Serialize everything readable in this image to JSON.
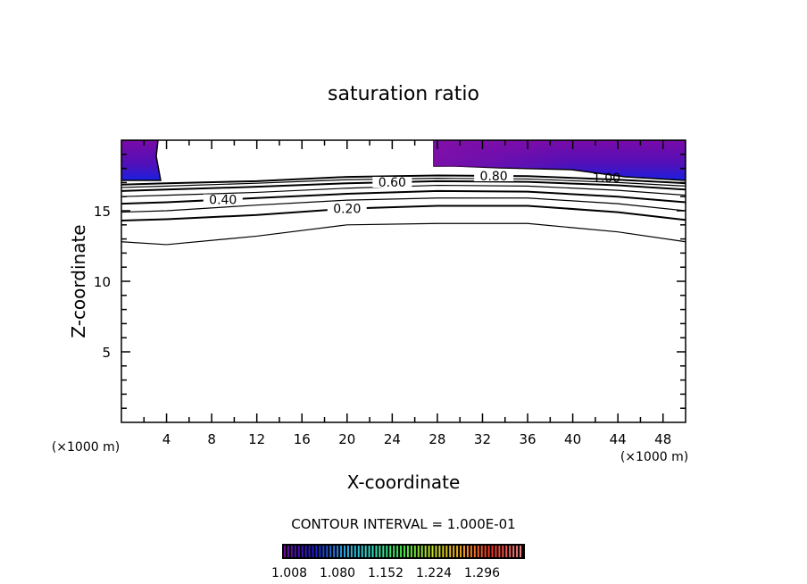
{
  "chart_data": {
    "type": "contour",
    "title": "saturation ratio",
    "xlabel": "X-coordinate",
    "ylabel": "Z-coordinate",
    "x_unit_left": "(×1000 m)",
    "x_unit_right": "(×1000 m)",
    "xlim": [
      0,
      50
    ],
    "ylim": [
      0,
      20
    ],
    "xticks": [
      4,
      8,
      12,
      16,
      20,
      24,
      28,
      32,
      36,
      40,
      44,
      48
    ],
    "yticks": [
      5,
      10,
      15
    ],
    "contour_interval_text": "CONTOUR INTERVAL = 1.000E-01",
    "contour_x": [
      0,
      4,
      12,
      20,
      28,
      36,
      44,
      50
    ],
    "contours": [
      {
        "level": 0.1,
        "label": "",
        "z": [
          12.8,
          12.6,
          13.2,
          14.0,
          14.1,
          14.1,
          13.5,
          12.8
        ]
      },
      {
        "level": 0.2,
        "label": "0.20",
        "z": [
          14.3,
          14.4,
          14.7,
          15.15,
          15.35,
          15.35,
          14.9,
          14.35
        ]
      },
      {
        "level": 0.3,
        "label": "",
        "z": [
          14.9,
          15.0,
          15.4,
          15.75,
          15.9,
          15.9,
          15.5,
          15.0
        ]
      },
      {
        "level": 0.4,
        "label": "0.40",
        "z": [
          15.5,
          15.6,
          15.9,
          16.2,
          16.4,
          16.35,
          16.0,
          15.6
        ]
      },
      {
        "level": 0.5,
        "label": "",
        "z": [
          16.0,
          16.1,
          16.3,
          16.6,
          16.8,
          16.75,
          16.45,
          16.1
        ]
      },
      {
        "level": 0.6,
        "label": "0.60",
        "z": [
          16.4,
          16.5,
          16.7,
          16.95,
          17.1,
          17.05,
          16.8,
          16.5
        ]
      },
      {
        "level": 0.7,
        "label": "",
        "z": [
          16.65,
          16.75,
          16.95,
          17.2,
          17.3,
          17.25,
          17.0,
          16.75
        ]
      },
      {
        "level": 0.8,
        "label": "0.80",
        "z": [
          16.85,
          16.95,
          17.1,
          17.4,
          17.5,
          17.45,
          17.2,
          16.95
        ]
      }
    ],
    "label_1_00": "1.00",
    "colorbar": {
      "tick_labels": [
        "1.008",
        "1.080",
        "1.152",
        "1.224",
        "1.296"
      ],
      "min": 1.008,
      "max": 1.35,
      "colors": [
        "#6a0a9a",
        "#1a1acc",
        "#2aa0e0",
        "#30e0c0",
        "#40e040",
        "#c0e020",
        "#f0a020",
        "#f03020",
        "#f08080"
      ]
    }
  }
}
